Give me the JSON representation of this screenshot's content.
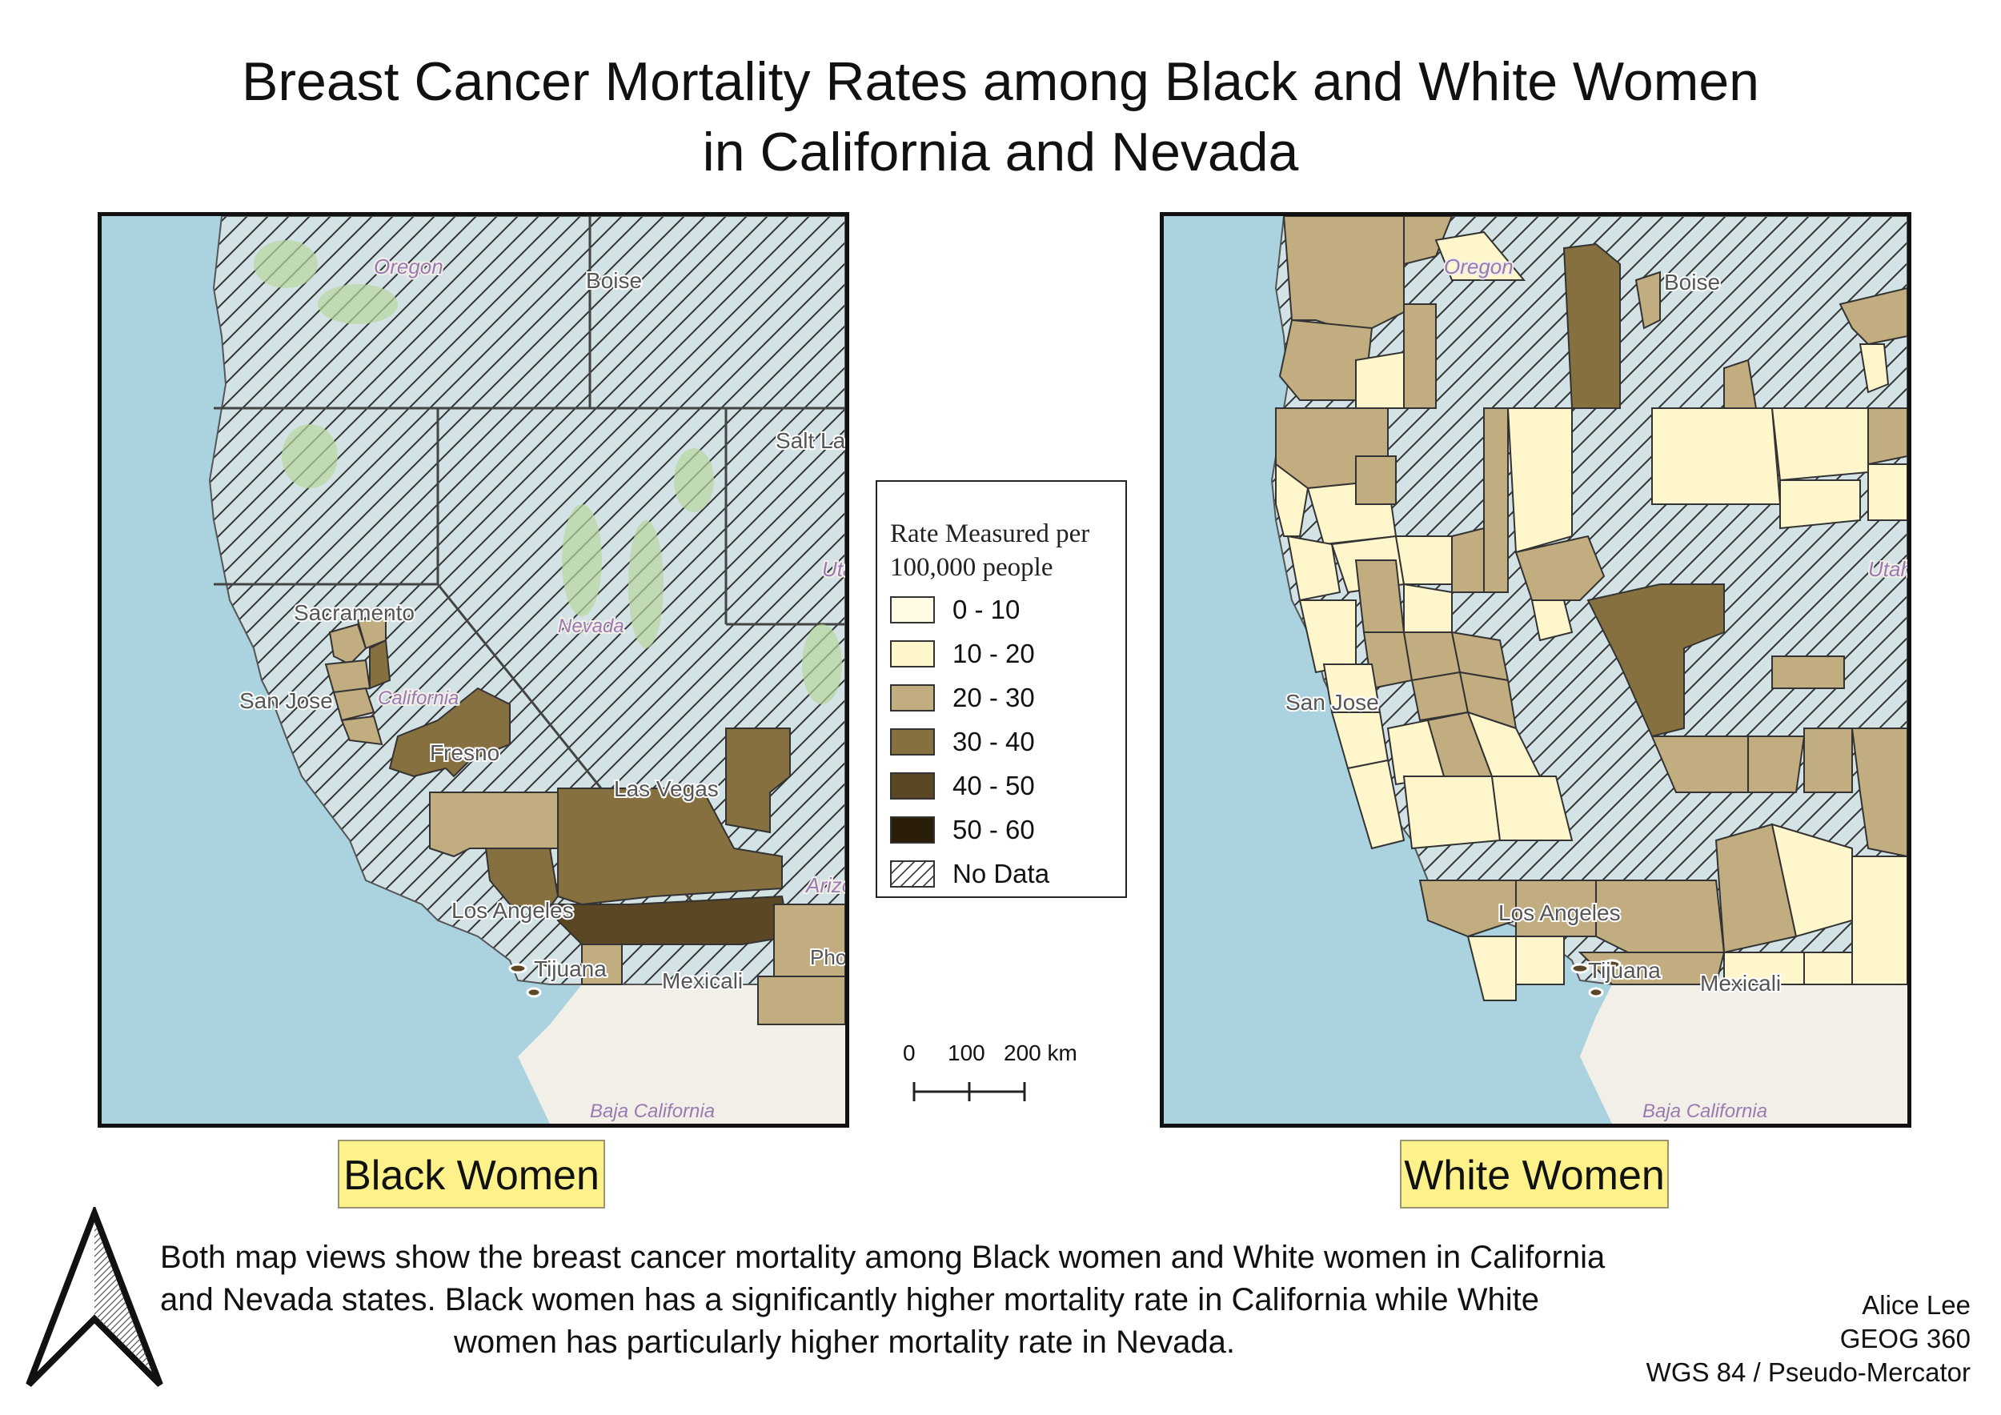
{
  "title": {
    "line1": "Breast Cancer Mortality Rates among Black and White Women",
    "line2": "in California and Nevada"
  },
  "legend": {
    "title_line1": "Rate Measured per",
    "title_line2": "100,000 people",
    "classes": [
      {
        "label": "0 - 10",
        "color": "#fffbe2"
      },
      {
        "label": "10 - 20",
        "color": "#fff6cc"
      },
      {
        "label": "20 - 30",
        "color": "#c2ad80"
      },
      {
        "label": "30 - 40",
        "color": "#87703f"
      },
      {
        "label": "40 - 50",
        "color": "#5c4724"
      },
      {
        "label": "50 - 60",
        "color": "#2a1e09"
      }
    ],
    "no_data_label": "No Data"
  },
  "maps": {
    "black": {
      "label": "Black Women",
      "places": [
        "Oregon",
        "Boise",
        "Salt Lake City",
        "Utah",
        "Nevada",
        "Sacramento",
        "San Jose",
        "California",
        "Fresno",
        "Las Vegas",
        "Los Angeles",
        "Tijuana",
        "Mexicali",
        "Arizona",
        "Phoenix",
        "Baja California"
      ]
    },
    "white": {
      "label": "White Women",
      "places": [
        "Oregon",
        "Boise",
        "Utah",
        "San Jose",
        "Los Angeles",
        "Tijuana",
        "Mexicali",
        "Baja California"
      ]
    }
  },
  "scale_bar": {
    "tick_0": "0",
    "tick_1": "100",
    "tick_2": "200 km"
  },
  "description": {
    "line1": "Both map views show the breast cancer mortality among Black women and White women in California",
    "line2": "and Nevada states. Black women has a significantly higher mortality rate in California while White",
    "line3": "women has particularly higher mortality rate in Nevada."
  },
  "credits": {
    "author": "Alice Lee",
    "course": "GEOG 360",
    "projection": "WGS 84 / Pseudo-Mercator"
  }
}
